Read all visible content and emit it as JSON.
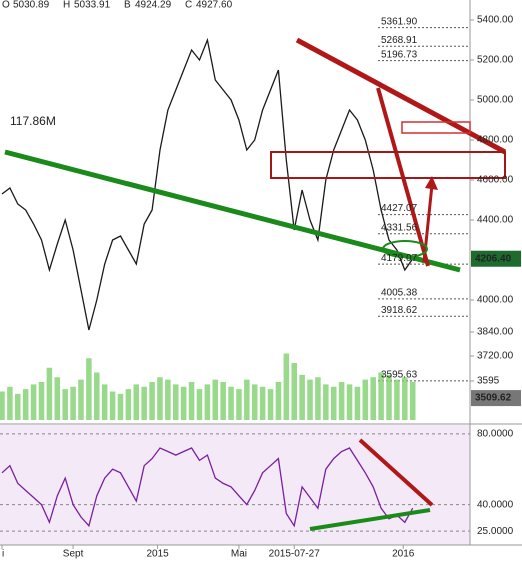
{
  "chart_data": [
    {
      "type": "line",
      "color": "#1a1a1a",
      "header": [
        {
          "key": "O",
          "text": "5030.89"
        },
        {
          "key": "H",
          "text": "5033.91"
        },
        {
          "key": "B",
          "text": "4924.29"
        },
        {
          "key": "C",
          "text": "4927.60"
        }
      ],
      "x": [
        0,
        1,
        2,
        3,
        4,
        5,
        6,
        7,
        8,
        9,
        10,
        11,
        12,
        13,
        14,
        15,
        16,
        17,
        18,
        19,
        20,
        21,
        22,
        23,
        24,
        25,
        26,
        27,
        28,
        29,
        30,
        31,
        32,
        33,
        34,
        35,
        36,
        37,
        38,
        39,
        40,
        41,
        42,
        43,
        44,
        45,
        46,
        47,
        48,
        49,
        50,
        51,
        52
      ],
      "values": [
        4530,
        4560,
        4480,
        4450,
        4380,
        4300,
        4150,
        4280,
        4400,
        4250,
        4050,
        3850,
        4000,
        4180,
        4300,
        4320,
        4250,
        4180,
        4380,
        4450,
        4750,
        4950,
        5050,
        5150,
        5250,
        5200,
        5300,
        5100,
        5050,
        5000,
        4900,
        4750,
        4800,
        4950,
        5050,
        5150,
        4700,
        4350,
        4550,
        4400,
        4300,
        4600,
        4750,
        4850,
        4950,
        4900,
        4800,
        4650,
        4450,
        4300,
        4250,
        4150,
        4206.4
      ],
      "xlim": [
        0,
        59
      ],
      "ylim": [
        3450,
        5450
      ],
      "yticks": [
        {
          "value": 5400,
          "label": "5400.00"
        },
        {
          "value": 5200,
          "label": "5200.00"
        },
        {
          "value": 5000,
          "label": "5000.00"
        },
        {
          "value": 4800,
          "label": "4800.00"
        },
        {
          "value": 4600,
          "label": "4600.00"
        },
        {
          "value": 4400,
          "label": "4400.00"
        },
        {
          "value": 4000,
          "label": "4000.00"
        },
        {
          "value": 3840,
          "label": "3840.00"
        },
        {
          "value": 3720,
          "label": "3720.00"
        },
        3595
      ],
      "levels": [
        {
          "value": 5361.9,
          "label": "5361.90"
        },
        {
          "value": 5268.91,
          "label": "5268.91"
        },
        {
          "value": 5196.73,
          "label": "5196.73"
        },
        {
          "value": 4427.07,
          "label": "4427.07"
        },
        {
          "value": 4331.56,
          "label": "4331.56"
        },
        {
          "value": 4179.07,
          "label": "4179.07"
        },
        {
          "value": 4005.38,
          "label": "4005.38"
        },
        {
          "value": 3918.62,
          "label": "3918.62"
        },
        {
          "value": 3595.63,
          "label": "3595.63"
        }
      ],
      "markers": [
        {
          "value": 4206.4,
          "label": "4206.40",
          "color": "#1e6b2e"
        },
        {
          "value": 3509.62,
          "label": "3509.62",
          "color": "#777777"
        }
      ]
    },
    {
      "type": "bar",
      "color": "#7fcf6f",
      "label": "117.86M",
      "ylim": [
        0,
        400
      ],
      "values": [
        120,
        140,
        110,
        130,
        150,
        160,
        220,
        180,
        130,
        140,
        170,
        260,
        200,
        150,
        120,
        110,
        130,
        150,
        140,
        160,
        180,
        170,
        150,
        140,
        160,
        130,
        150,
        170,
        160,
        140,
        130,
        170,
        150,
        140,
        130,
        160,
        280,
        240,
        190,
        170,
        180,
        150,
        140,
        160,
        150,
        140,
        170,
        180,
        200,
        190,
        170,
        180,
        160
      ]
    },
    {
      "type": "line",
      "color": "#7b1fa2",
      "ylim": [
        20,
        85
      ],
      "values": [
        58,
        62,
        52,
        48,
        44,
        40,
        30,
        45,
        55,
        40,
        33,
        28,
        45,
        55,
        60,
        58,
        50,
        42,
        62,
        66,
        72,
        70,
        68,
        70,
        72,
        65,
        68,
        55,
        52,
        50,
        45,
        40,
        48,
        58,
        62,
        66,
        35,
        28,
        50,
        44,
        38,
        60,
        66,
        70,
        72,
        65,
        58,
        50,
        38,
        32,
        34,
        30,
        38
      ],
      "yticks": [
        {
          "value": 80,
          "label": "80.0000"
        },
        {
          "value": 40,
          "label": "40.0000"
        },
        {
          "value": 25,
          "label": "25.0000"
        }
      ],
      "xticks": [
        {
          "value": 0,
          "label": "i"
        },
        {
          "value": 9,
          "label": "Sept"
        },
        {
          "value": 19.7,
          "label": "2015"
        },
        {
          "value": 30,
          "label": "Mai"
        },
        {
          "value": 37,
          "label": "2015-07-27"
        },
        {
          "value": 50.8,
          "label": "2016"
        }
      ]
    }
  ]
}
